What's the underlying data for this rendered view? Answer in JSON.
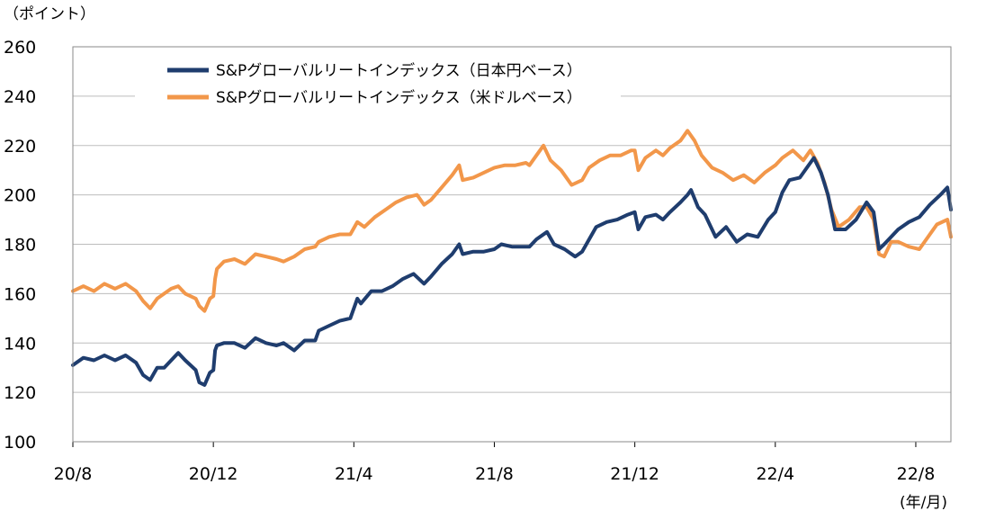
{
  "chart_data": {
    "type": "line",
    "title": "",
    "y_unit_label": "（ポイント）",
    "x_unit_label": "(年/月)",
    "ylim": [
      100,
      260
    ],
    "yticks": [
      100,
      120,
      140,
      160,
      180,
      200,
      220,
      240,
      260
    ],
    "xlim": [
      0,
      25
    ],
    "x_ticks": [
      {
        "pos": 0,
        "label": "20/8"
      },
      {
        "pos": 4,
        "label": "20/12"
      },
      {
        "pos": 8,
        "label": "21/4"
      },
      {
        "pos": 12,
        "label": "21/8"
      },
      {
        "pos": 16,
        "label": "21/12"
      },
      {
        "pos": 20,
        "label": "22/4"
      },
      {
        "pos": 24,
        "label": "22/8"
      }
    ],
    "grid": true,
    "legend_position": "top-left",
    "series": [
      {
        "name": "S&Pグローバルリートインデックス（日本円ベース）",
        "color": "#1f3d6e",
        "points": [
          [
            0.0,
            131
          ],
          [
            0.3,
            134
          ],
          [
            0.6,
            133
          ],
          [
            0.9,
            135
          ],
          [
            1.2,
            133
          ],
          [
            1.5,
            135
          ],
          [
            1.8,
            132
          ],
          [
            2.0,
            127
          ],
          [
            2.2,
            125
          ],
          [
            2.4,
            130
          ],
          [
            2.6,
            130
          ],
          [
            2.8,
            133
          ],
          [
            3.0,
            136
          ],
          [
            3.2,
            133
          ],
          [
            3.5,
            129
          ],
          [
            3.6,
            124
          ],
          [
            3.75,
            123
          ],
          [
            3.9,
            128
          ],
          [
            4.0,
            129
          ],
          [
            4.05,
            137
          ],
          [
            4.1,
            139
          ],
          [
            4.3,
            140
          ],
          [
            4.6,
            140
          ],
          [
            4.9,
            138
          ],
          [
            5.2,
            142
          ],
          [
            5.5,
            140
          ],
          [
            5.8,
            139
          ],
          [
            6.0,
            140
          ],
          [
            6.3,
            137
          ],
          [
            6.6,
            141
          ],
          [
            6.9,
            141
          ],
          [
            7.0,
            145
          ],
          [
            7.3,
            147
          ],
          [
            7.6,
            149
          ],
          [
            7.9,
            150
          ],
          [
            8.1,
            158
          ],
          [
            8.2,
            156
          ],
          [
            8.5,
            161
          ],
          [
            8.8,
            161
          ],
          [
            9.1,
            163
          ],
          [
            9.4,
            166
          ],
          [
            9.7,
            168
          ],
          [
            10.0,
            164
          ],
          [
            10.2,
            167
          ],
          [
            10.5,
            172
          ],
          [
            10.8,
            176
          ],
          [
            11.0,
            180
          ],
          [
            11.1,
            176
          ],
          [
            11.4,
            177
          ],
          [
            11.7,
            177
          ],
          [
            12.0,
            178
          ],
          [
            12.2,
            180
          ],
          [
            12.5,
            179
          ],
          [
            12.8,
            179
          ],
          [
            13.0,
            179
          ],
          [
            13.2,
            182
          ],
          [
            13.5,
            185
          ],
          [
            13.7,
            180
          ],
          [
            14.0,
            178
          ],
          [
            14.3,
            175
          ],
          [
            14.5,
            177
          ],
          [
            14.7,
            182
          ],
          [
            14.9,
            187
          ],
          [
            15.2,
            189
          ],
          [
            15.5,
            190
          ],
          [
            15.8,
            192
          ],
          [
            16.0,
            193
          ],
          [
            16.1,
            186
          ],
          [
            16.3,
            191
          ],
          [
            16.6,
            192
          ],
          [
            16.8,
            190
          ],
          [
            17.0,
            193
          ],
          [
            17.3,
            197
          ],
          [
            17.5,
            200
          ],
          [
            17.6,
            202
          ],
          [
            17.8,
            195
          ],
          [
            18.0,
            192
          ],
          [
            18.3,
            183
          ],
          [
            18.6,
            187
          ],
          [
            18.9,
            181
          ],
          [
            19.2,
            184
          ],
          [
            19.5,
            183
          ],
          [
            19.8,
            190
          ],
          [
            20.0,
            193
          ],
          [
            20.2,
            201
          ],
          [
            20.4,
            206
          ],
          [
            20.7,
            207
          ],
          [
            20.9,
            211
          ],
          [
            21.1,
            215
          ],
          [
            21.3,
            209
          ],
          [
            21.5,
            200
          ],
          [
            21.7,
            186
          ],
          [
            22.0,
            186
          ],
          [
            22.3,
            190
          ],
          [
            22.6,
            197
          ],
          [
            22.8,
            193
          ],
          [
            22.95,
            178
          ],
          [
            23.1,
            180
          ],
          [
            23.3,
            183
          ],
          [
            23.5,
            186
          ],
          [
            23.8,
            189
          ],
          [
            24.1,
            191
          ],
          [
            24.4,
            196
          ],
          [
            24.7,
            200
          ],
          [
            24.9,
            203
          ],
          [
            25.0,
            194
          ]
        ]
      },
      {
        "name": "S&Pグローバルリートインデックス（米ドルベース）",
        "color": "#f2974a",
        "points": [
          [
            0.0,
            161
          ],
          [
            0.3,
            163
          ],
          [
            0.6,
            161
          ],
          [
            0.9,
            164
          ],
          [
            1.2,
            162
          ],
          [
            1.5,
            164
          ],
          [
            1.8,
            161
          ],
          [
            2.0,
            157
          ],
          [
            2.2,
            154
          ],
          [
            2.4,
            158
          ],
          [
            2.6,
            160
          ],
          [
            2.8,
            162
          ],
          [
            3.0,
            163
          ],
          [
            3.2,
            160
          ],
          [
            3.5,
            158
          ],
          [
            3.6,
            155
          ],
          [
            3.75,
            153
          ],
          [
            3.9,
            158
          ],
          [
            4.0,
            159
          ],
          [
            4.05,
            166
          ],
          [
            4.1,
            170
          ],
          [
            4.3,
            173
          ],
          [
            4.6,
            174
          ],
          [
            4.9,
            172
          ],
          [
            5.2,
            176
          ],
          [
            5.5,
            175
          ],
          [
            5.8,
            174
          ],
          [
            6.0,
            173
          ],
          [
            6.3,
            175
          ],
          [
            6.6,
            178
          ],
          [
            6.9,
            179
          ],
          [
            7.0,
            181
          ],
          [
            7.3,
            183
          ],
          [
            7.6,
            184
          ],
          [
            7.9,
            184
          ],
          [
            8.1,
            189
          ],
          [
            8.3,
            187
          ],
          [
            8.6,
            191
          ],
          [
            8.9,
            194
          ],
          [
            9.2,
            197
          ],
          [
            9.5,
            199
          ],
          [
            9.8,
            200
          ],
          [
            10.0,
            196
          ],
          [
            10.2,
            198
          ],
          [
            10.5,
            203
          ],
          [
            10.8,
            208
          ],
          [
            11.0,
            212
          ],
          [
            11.1,
            206
          ],
          [
            11.4,
            207
          ],
          [
            11.7,
            209
          ],
          [
            12.0,
            211
          ],
          [
            12.3,
            212
          ],
          [
            12.6,
            212
          ],
          [
            12.9,
            213
          ],
          [
            13.0,
            212
          ],
          [
            13.2,
            216
          ],
          [
            13.4,
            220
          ],
          [
            13.6,
            214
          ],
          [
            13.9,
            210
          ],
          [
            14.2,
            204
          ],
          [
            14.5,
            206
          ],
          [
            14.7,
            211
          ],
          [
            15.0,
            214
          ],
          [
            15.3,
            216
          ],
          [
            15.6,
            216
          ],
          [
            15.9,
            218
          ],
          [
            16.0,
            218
          ],
          [
            16.1,
            210
          ],
          [
            16.3,
            215
          ],
          [
            16.6,
            218
          ],
          [
            16.8,
            216
          ],
          [
            17.0,
            219
          ],
          [
            17.3,
            222
          ],
          [
            17.5,
            226
          ],
          [
            17.7,
            222
          ],
          [
            17.9,
            216
          ],
          [
            18.2,
            211
          ],
          [
            18.5,
            209
          ],
          [
            18.8,
            206
          ],
          [
            19.1,
            208
          ],
          [
            19.4,
            205
          ],
          [
            19.7,
            209
          ],
          [
            20.0,
            212
          ],
          [
            20.2,
            215
          ],
          [
            20.5,
            218
          ],
          [
            20.8,
            214
          ],
          [
            21.0,
            218
          ],
          [
            21.2,
            213
          ],
          [
            21.4,
            205
          ],
          [
            21.6,
            194
          ],
          [
            21.8,
            187
          ],
          [
            22.1,
            190
          ],
          [
            22.4,
            195
          ],
          [
            22.6,
            195
          ],
          [
            22.8,
            190
          ],
          [
            22.95,
            176
          ],
          [
            23.1,
            175
          ],
          [
            23.3,
            181
          ],
          [
            23.5,
            181
          ],
          [
            23.8,
            179
          ],
          [
            24.1,
            178
          ],
          [
            24.3,
            182
          ],
          [
            24.6,
            188
          ],
          [
            24.9,
            190
          ],
          [
            25.0,
            183
          ]
        ]
      }
    ]
  }
}
